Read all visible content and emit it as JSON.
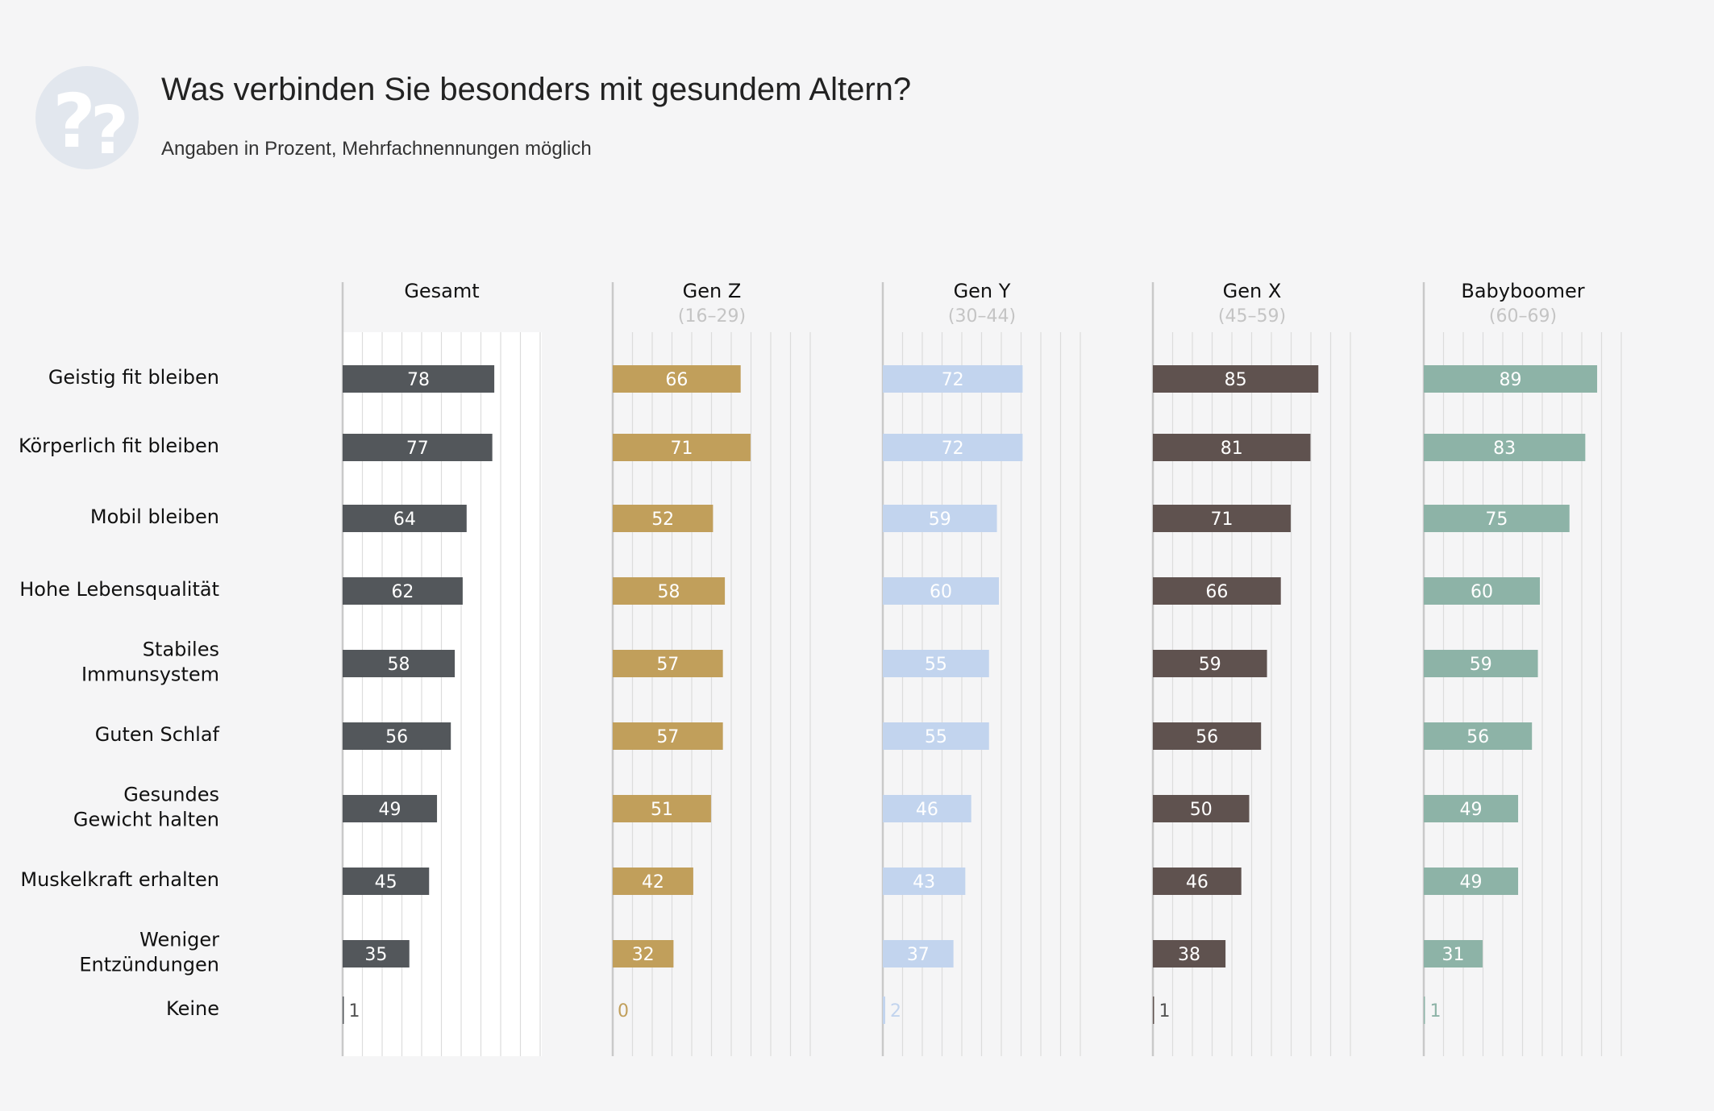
{
  "header": {
    "title": "Was verbinden Sie besonders mit gesundem Altern?",
    "subtitle": "Angaben in Prozent, Mehrfachnennungen möglich",
    "icon": "question-marks-icon"
  },
  "chart_data": {
    "type": "bar",
    "orientation": "horizontal",
    "title": "Was verbinden Sie besonders mit gesundem Altern?",
    "subtitle": "Angaben in Prozent, Mehrfachnennungen möglich",
    "categories": [
      [
        "Geistig fit bleiben"
      ],
      [
        "Körperlich fit bleiben"
      ],
      [
        "Mobil bleiben"
      ],
      [
        "Hohe Lebensqualität"
      ],
      [
        "Stabiles",
        "Immunsystem"
      ],
      [
        "Guten Schlaf"
      ],
      [
        "Gesundes",
        "Gewicht halten"
      ],
      [
        "Muskelkraft erhalten"
      ],
      [
        "Weniger",
        "Entzündungen"
      ],
      [
        "Keine"
      ]
    ],
    "xlim": [
      0,
      100
    ],
    "grid": true,
    "series": [
      {
        "name": "Gesamt",
        "range": "",
        "color": "#53575b",
        "label_color": "#ffffff",
        "values": [
          78,
          77,
          64,
          62,
          58,
          56,
          49,
          45,
          35,
          1
        ]
      },
      {
        "name": "Gen Z",
        "range": "(16–29)",
        "color": "#c19f5b",
        "label_color": "#ffffff",
        "values": [
          66,
          71,
          52,
          58,
          57,
          57,
          51,
          42,
          32,
          0
        ]
      },
      {
        "name": "Gen Y",
        "range": "(30–44)",
        "color": "#c2d4ee",
        "label_color": "#ffffff",
        "values": [
          72,
          72,
          59,
          60,
          55,
          55,
          46,
          43,
          37,
          2
        ]
      },
      {
        "name": "Gen X",
        "range": "(45–59)",
        "color": "#5f524f",
        "label_color": "#ffffff",
        "values": [
          85,
          81,
          71,
          66,
          59,
          56,
          50,
          46,
          38,
          1
        ]
      },
      {
        "name": "Babyboomer",
        "range": "(60–69)",
        "color": "#8db3a7",
        "label_color": "#ffffff",
        "values": [
          89,
          83,
          75,
          60,
          59,
          56,
          49,
          49,
          31,
          1
        ]
      }
    ]
  }
}
